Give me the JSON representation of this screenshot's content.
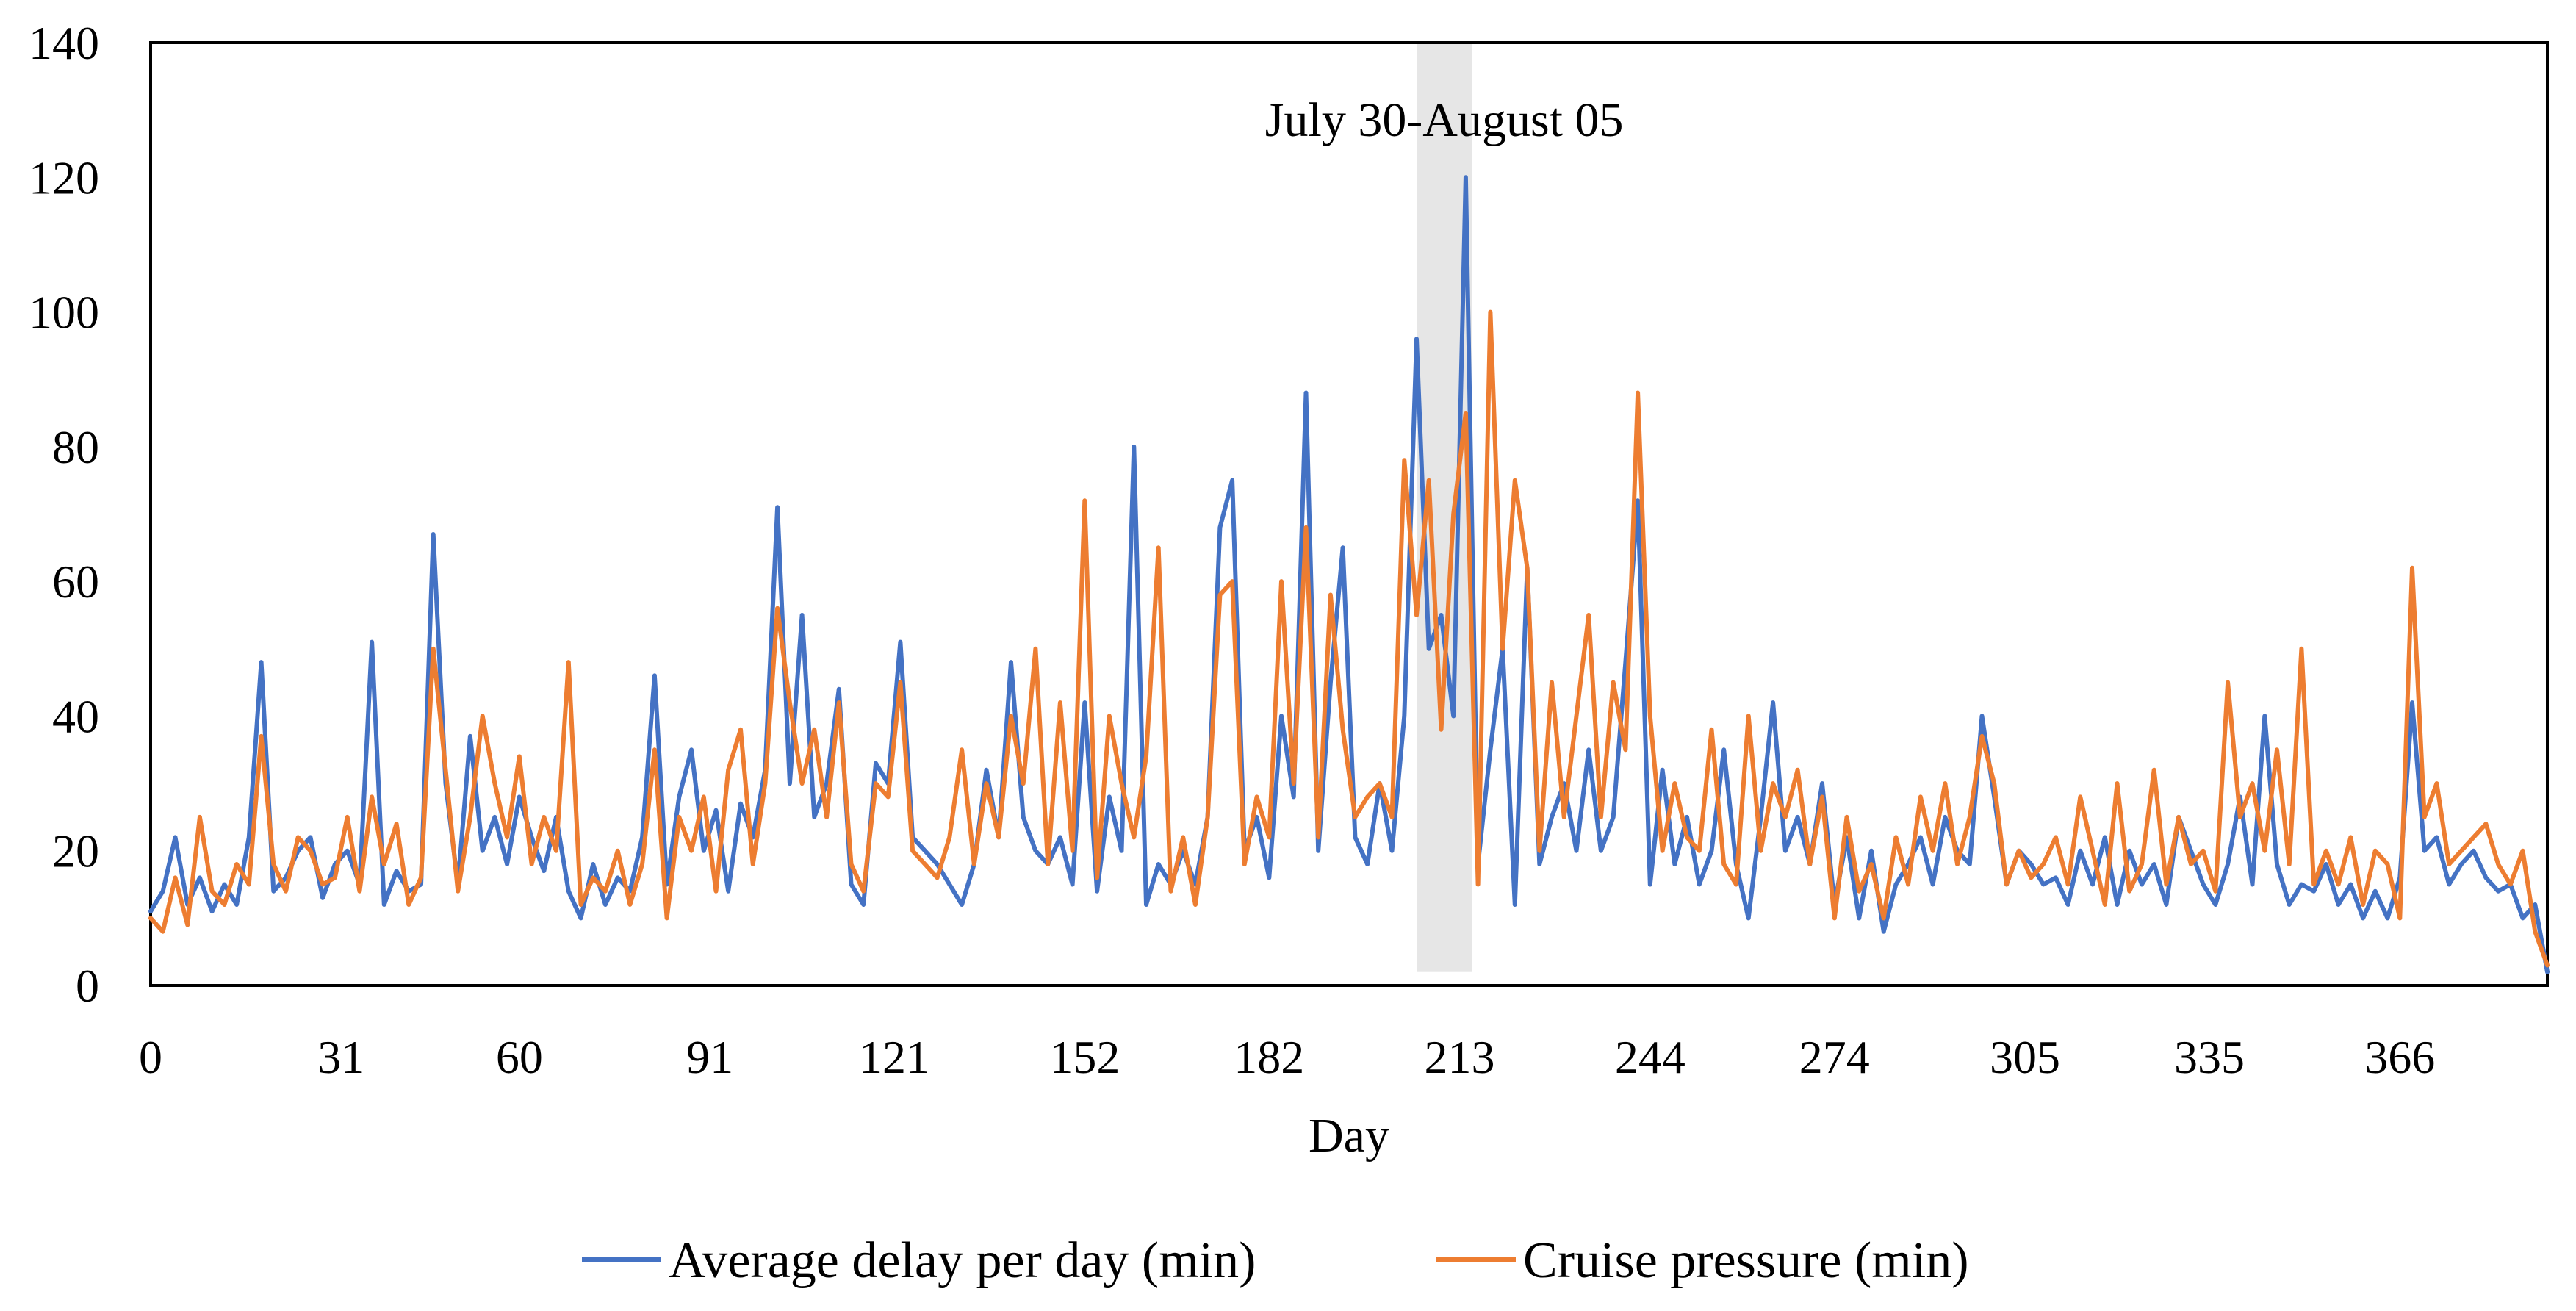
{
  "chart_data": {
    "type": "line",
    "title": "",
    "xlabel": "Day",
    "ylabel": "",
    "xlim": [
      0,
      390
    ],
    "ylim": [
      0,
      140
    ],
    "yticks": [
      0,
      20,
      40,
      60,
      80,
      100,
      120,
      140
    ],
    "xticks": [
      0,
      31,
      60,
      91,
      121,
      152,
      182,
      213,
      244,
      274,
      305,
      335,
      366
    ],
    "grid": false,
    "legend_position": "bottom",
    "highlight": {
      "x_range": [
        206,
        215
      ],
      "label": "July 30-August 05"
    },
    "series": [
      {
        "name": "Average delay per day (min)",
        "color": "#4472C4",
        "x": [
          0,
          2,
          4,
          6,
          8,
          10,
          12,
          14,
          16,
          18,
          20,
          22,
          24,
          26,
          28,
          30,
          32,
          34,
          36,
          38,
          40,
          42,
          44,
          46,
          48,
          50,
          52,
          54,
          56,
          58,
          60,
          62,
          64,
          66,
          68,
          70,
          72,
          74,
          76,
          78,
          80,
          82,
          84,
          86,
          88,
          90,
          92,
          94,
          96,
          98,
          100,
          102,
          104,
          106,
          108,
          110,
          112,
          114,
          116,
          118,
          120,
          122,
          124,
          126,
          128,
          130,
          132,
          134,
          136,
          138,
          140,
          142,
          144,
          146,
          148,
          150,
          152,
          154,
          156,
          158,
          160,
          162,
          164,
          166,
          168,
          170,
          172,
          174,
          176,
          178,
          180,
          182,
          184,
          186,
          188,
          190,
          192,
          194,
          196,
          198,
          200,
          202,
          204,
          206,
          208,
          210,
          212,
          214,
          216,
          218,
          220,
          222,
          224,
          226,
          228,
          230,
          232,
          234,
          236,
          238,
          240,
          242,
          244,
          246,
          248,
          250,
          252,
          254,
          256,
          258,
          260,
          262,
          264,
          266,
          268,
          270,
          272,
          274,
          276,
          278,
          280,
          282,
          284,
          286,
          288,
          290,
          292,
          294,
          296,
          298,
          300,
          302,
          304,
          306,
          308,
          310,
          312,
          314,
          316,
          318,
          320,
          322,
          324,
          326,
          328,
          330,
          332,
          334,
          336,
          338,
          340,
          342,
          344,
          346,
          348,
          350,
          352,
          354,
          356,
          358,
          360,
          362,
          364,
          366,
          368,
          370,
          372,
          374,
          376,
          378,
          380,
          382,
          384,
          386,
          388,
          390
        ],
        "values": [
          11,
          14,
          22,
          12,
          16,
          11,
          15,
          12,
          22,
          48,
          14,
          16,
          20,
          22,
          13,
          18,
          20,
          15,
          51,
          12,
          17,
          14,
          15,
          67,
          30,
          15,
          37,
          20,
          25,
          18,
          28,
          22,
          17,
          25,
          14,
          10,
          18,
          12,
          16,
          14,
          22,
          46,
          15,
          28,
          35,
          20,
          26,
          14,
          27,
          22,
          32,
          71,
          30,
          55,
          25,
          30,
          44,
          15,
          12,
          33,
          30,
          51,
          22,
          20,
          18,
          15,
          12,
          18,
          32,
          22,
          48,
          25,
          20,
          18,
          22,
          15,
          42,
          14,
          28,
          20,
          80,
          12,
          18,
          15,
          20,
          15,
          25,
          68,
          75,
          20,
          25,
          16,
          40,
          28,
          88,
          20,
          45,
          65,
          22,
          18,
          30,
          20,
          40,
          96,
          50,
          55,
          40,
          120,
          18,
          35,
          50,
          12,
          62,
          18,
          25,
          30,
          20,
          35,
          20,
          25,
          48,
          72,
          15,
          32,
          18,
          25,
          15,
          20,
          35,
          18,
          10,
          25,
          42,
          20,
          25,
          18,
          30,
          12,
          22,
          10,
          20,
          8,
          15,
          18,
          22,
          15,
          25,
          20,
          18,
          40,
          28,
          15,
          20,
          18,
          15,
          16,
          12,
          20,
          15,
          22,
          12,
          20,
          15,
          18,
          12,
          25,
          20,
          15,
          12,
          18,
          28,
          15,
          40,
          18,
          12,
          15,
          14,
          18,
          12,
          15,
          10,
          14,
          10,
          16,
          42,
          20,
          22,
          15,
          18,
          20,
          16,
          14,
          15,
          10,
          12,
          2
        ]
      },
      {
        "name": "Cruise pressure (min)",
        "color": "#ED7D31",
        "x": [
          0,
          2,
          4,
          6,
          8,
          10,
          12,
          14,
          16,
          18,
          20,
          22,
          24,
          26,
          28,
          30,
          32,
          34,
          36,
          38,
          40,
          42,
          44,
          46,
          48,
          50,
          52,
          54,
          56,
          58,
          60,
          62,
          64,
          66,
          68,
          70,
          72,
          74,
          76,
          78,
          80,
          82,
          84,
          86,
          88,
          90,
          92,
          94,
          96,
          98,
          100,
          102,
          104,
          106,
          108,
          110,
          112,
          114,
          116,
          118,
          120,
          122,
          124,
          126,
          128,
          130,
          132,
          134,
          136,
          138,
          140,
          142,
          144,
          146,
          148,
          150,
          152,
          154,
          156,
          158,
          160,
          162,
          164,
          166,
          168,
          170,
          172,
          174,
          176,
          178,
          180,
          182,
          184,
          186,
          188,
          190,
          192,
          194,
          196,
          198,
          200,
          202,
          204,
          206,
          208,
          210,
          212,
          214,
          216,
          218,
          220,
          222,
          224,
          226,
          228,
          230,
          232,
          234,
          236,
          238,
          240,
          242,
          244,
          246,
          248,
          250,
          252,
          254,
          256,
          258,
          260,
          262,
          264,
          266,
          268,
          270,
          272,
          274,
          276,
          278,
          280,
          282,
          284,
          286,
          288,
          290,
          292,
          294,
          296,
          298,
          300,
          302,
          304,
          306,
          308,
          310,
          312,
          314,
          316,
          318,
          320,
          322,
          324,
          326,
          328,
          330,
          332,
          334,
          336,
          338,
          340,
          342,
          344,
          346,
          348,
          350,
          352,
          354,
          356,
          358,
          360,
          362,
          364,
          366,
          368,
          370,
          372,
          374,
          376,
          378,
          380,
          382,
          384,
          386,
          388,
          390
        ],
        "values": [
          10,
          8,
          16,
          9,
          25,
          14,
          12,
          18,
          15,
          37,
          18,
          14,
          22,
          20,
          15,
          16,
          25,
          14,
          28,
          18,
          24,
          12,
          16,
          50,
          32,
          14,
          25,
          40,
          30,
          22,
          34,
          18,
          25,
          20,
          48,
          12,
          16,
          14,
          20,
          12,
          18,
          35,
          10,
          25,
          20,
          28,
          14,
          32,
          38,
          18,
          30,
          56,
          42,
          30,
          38,
          25,
          42,
          18,
          14,
          30,
          28,
          45,
          20,
          18,
          16,
          22,
          35,
          18,
          30,
          22,
          40,
          30,
          50,
          18,
          42,
          20,
          72,
          16,
          40,
          30,
          22,
          34,
          65,
          14,
          22,
          12,
          25,
          58,
          60,
          18,
          28,
          22,
          60,
          30,
          68,
          22,
          58,
          38,
          25,
          28,
          30,
          25,
          78,
          55,
          75,
          38,
          70,
          85,
          15,
          100,
          50,
          75,
          62,
          20,
          45,
          25,
          40,
          55,
          25,
          45,
          35,
          88,
          40,
          20,
          30,
          22,
          20,
          38,
          18,
          15,
          40,
          20,
          30,
          25,
          32,
          18,
          28,
          10,
          25,
          14,
          18,
          10,
          22,
          15,
          28,
          20,
          30,
          18,
          25,
          37,
          30,
          15,
          20,
          16,
          18,
          22,
          15,
          28,
          20,
          12,
          30,
          14,
          18,
          32,
          15,
          25,
          18,
          20,
          14,
          45,
          25,
          30,
          20,
          35,
          18,
          50,
          15,
          20,
          15,
          22,
          12,
          20,
          18,
          10,
          62,
          25,
          30,
          18,
          20,
          22,
          24,
          18,
          15,
          20,
          8,
          3
        ]
      }
    ]
  }
}
